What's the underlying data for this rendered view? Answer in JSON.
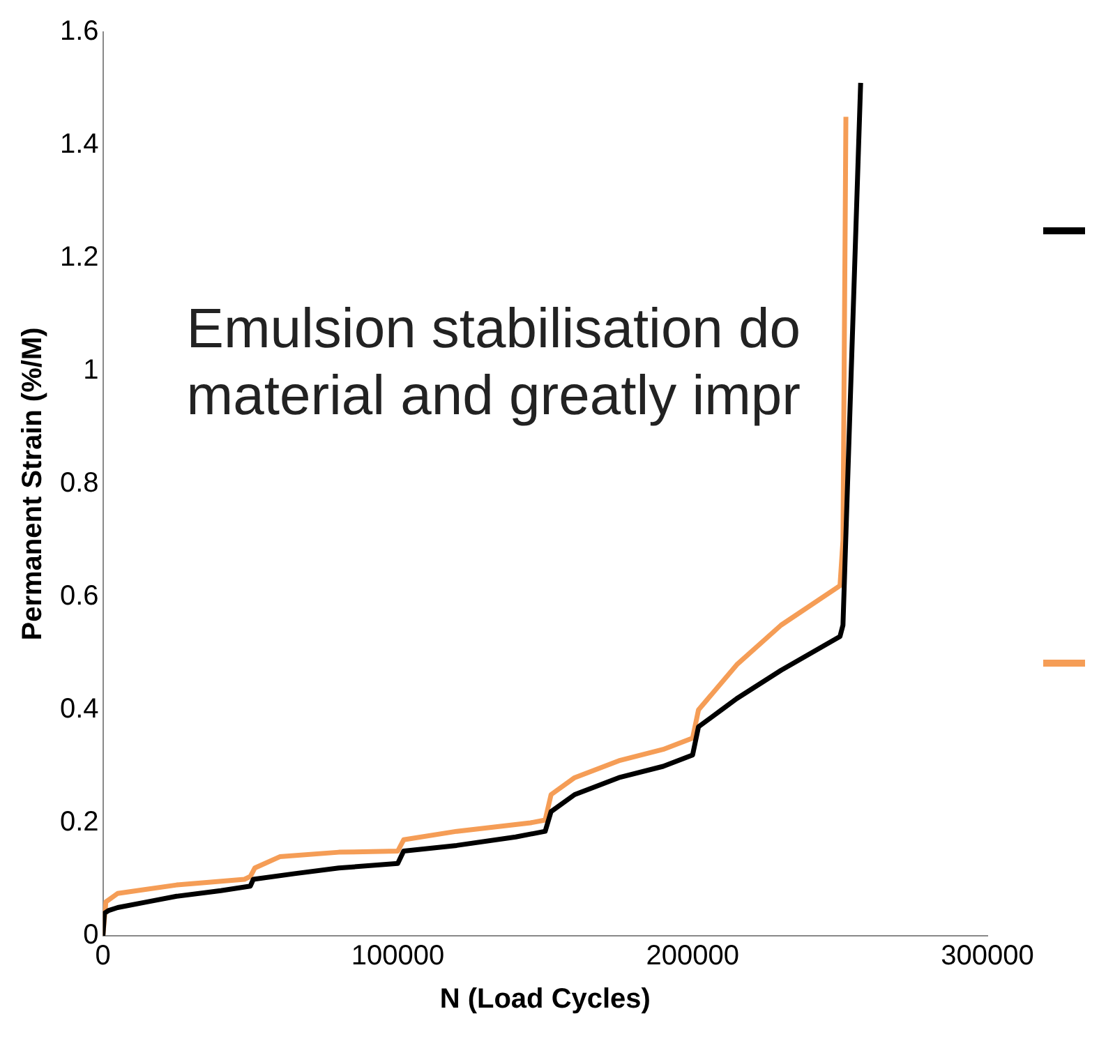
{
  "chart_data": {
    "type": "line",
    "xlabel": "N (Load Cycles)",
    "ylabel": "Permanent Strain (%/M)",
    "xlim": [
      0,
      300000
    ],
    "xticks": [
      0,
      100000,
      200000,
      300000
    ],
    "ylim": [
      0,
      1.6
    ],
    "yticks": [
      0,
      0.2,
      0.4,
      0.6,
      0.8,
      1,
      1.2,
      1.4,
      1.6
    ],
    "grid": false,
    "marker": "none",
    "line_style": "solid",
    "annotations": [
      "Emulsion stabilisation do",
      "material and greatly impr"
    ],
    "series": [
      {
        "color": "#000000",
        "x": [
          0,
          500,
          2000,
          5000,
          15000,
          25000,
          40000,
          50000,
          51000,
          65000,
          80000,
          100000,
          102000,
          120000,
          140000,
          150000,
          152000,
          160000,
          175000,
          190000,
          200000,
          202000,
          215000,
          230000,
          250000,
          251000,
          257000
        ],
        "values": [
          0,
          0.04,
          0.045,
          0.05,
          0.06,
          0.07,
          0.08,
          0.088,
          0.1,
          0.11,
          0.12,
          0.128,
          0.15,
          0.16,
          0.175,
          0.185,
          0.22,
          0.25,
          0.28,
          0.3,
          0.32,
          0.37,
          0.42,
          0.47,
          0.53,
          0.55,
          1.51
        ]
      },
      {
        "color": "#f59d56",
        "x": [
          0,
          1000,
          5000,
          25000,
          48000,
          50000,
          51500,
          60000,
          80000,
          100000,
          102000,
          120000,
          145000,
          150000,
          152000,
          160000,
          175000,
          190000,
          200000,
          202000,
          215000,
          230000,
          250000,
          251000,
          252000
        ],
        "values": [
          0,
          0.06,
          0.075,
          0.09,
          0.1,
          0.105,
          0.12,
          0.14,
          0.148,
          0.15,
          0.17,
          0.185,
          0.2,
          0.205,
          0.25,
          0.28,
          0.31,
          0.33,
          0.35,
          0.4,
          0.48,
          0.55,
          0.62,
          0.7,
          1.45
        ]
      }
    ]
  }
}
